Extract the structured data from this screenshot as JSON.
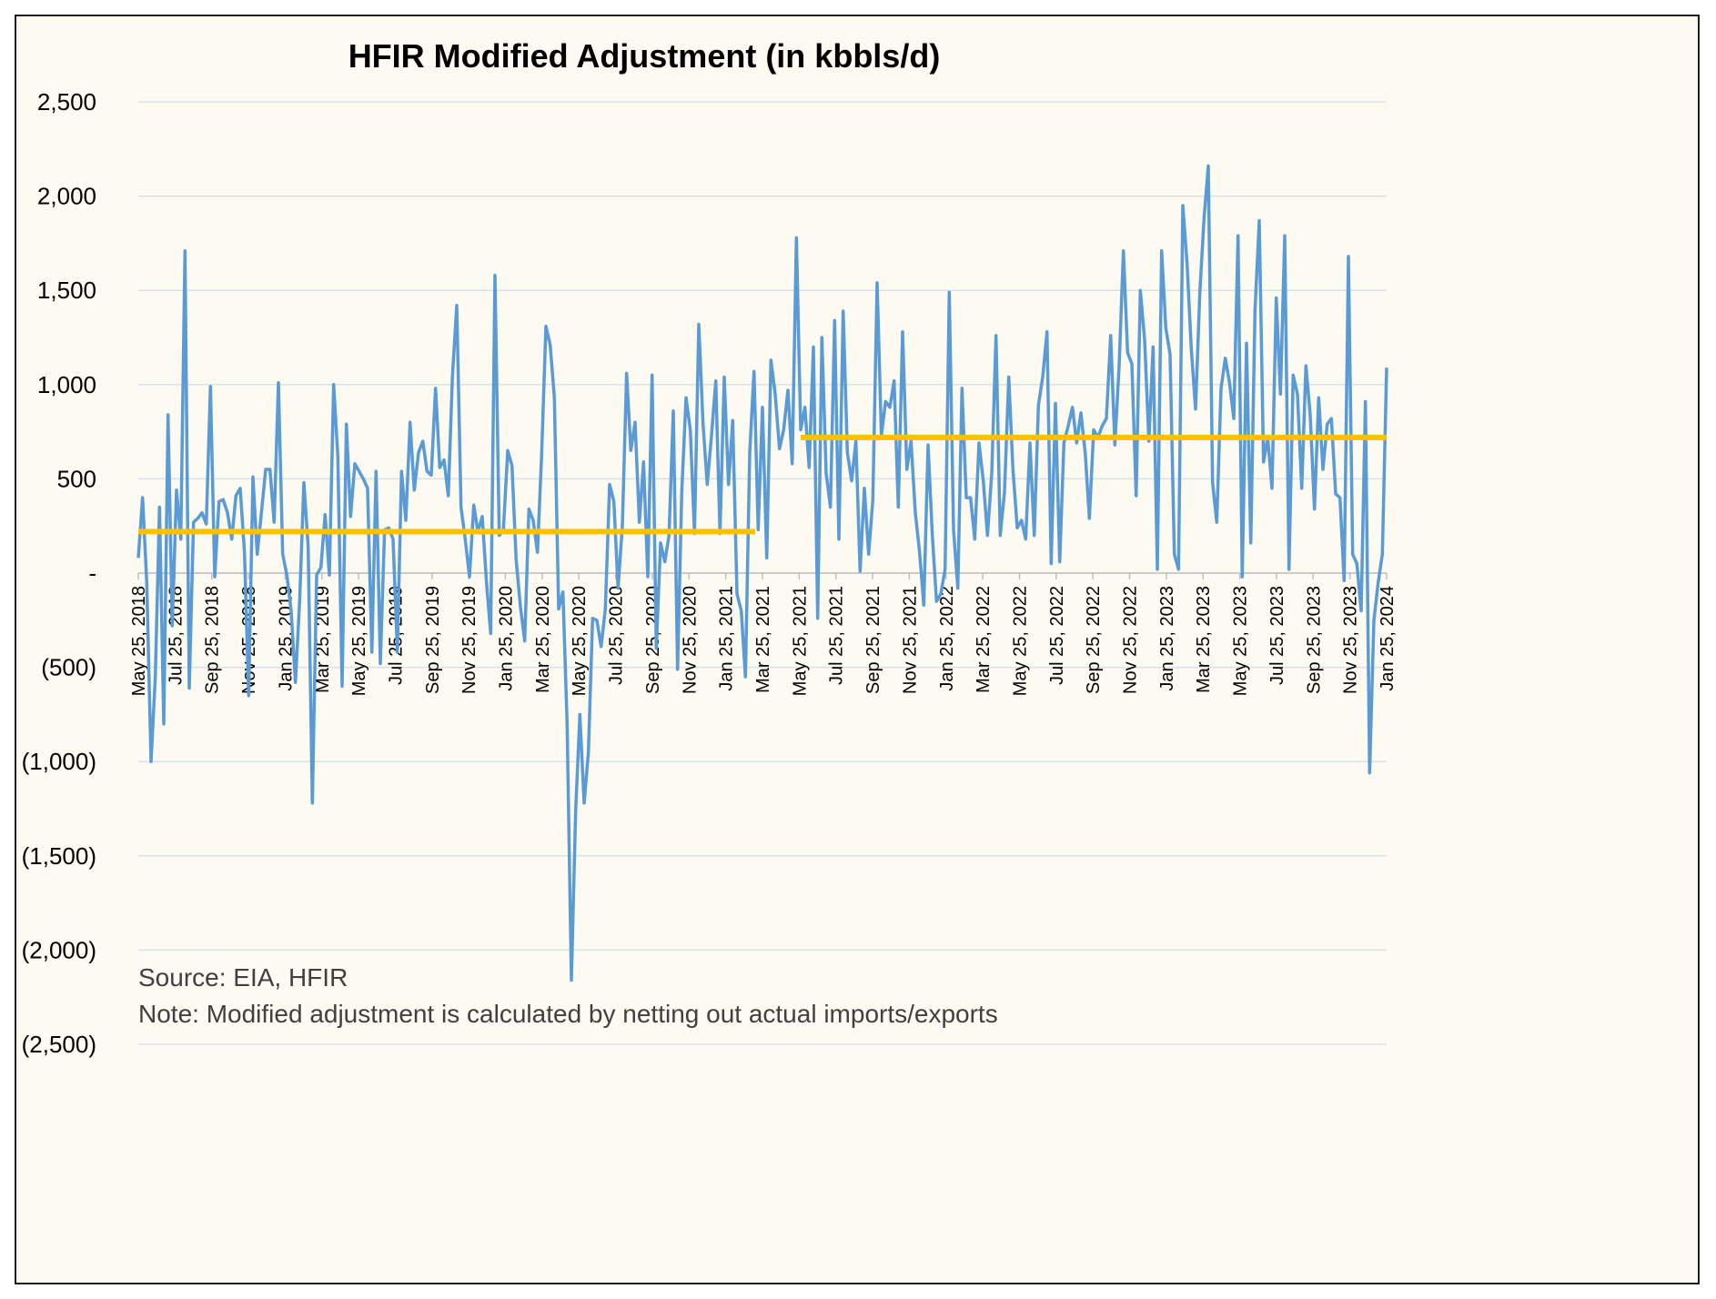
{
  "colors": {
    "background": "#fcfaf1",
    "series": "#5b9bd5",
    "average": "#ffc000",
    "gridline": "#d9e1ea",
    "frame": "#1f1f1f"
  },
  "chart_data": {
    "type": "line",
    "title": "HFIR Modified Adjustment (in kbbls/d)",
    "xlabel": "",
    "ylabel": "",
    "ylim": [
      -2500,
      2500
    ],
    "grid": "horizontal",
    "legend": "none",
    "y_ticks": [
      {
        "value": 2500,
        "label": "2,500"
      },
      {
        "value": 2000,
        "label": "2,000"
      },
      {
        "value": 1500,
        "label": "1,500"
      },
      {
        "value": 1000,
        "label": "1,000"
      },
      {
        "value": 500,
        "label": "500"
      },
      {
        "value": 0,
        "label": "-"
      },
      {
        "value": -500,
        "label": "(500)"
      },
      {
        "value": -1000,
        "label": "(1,000)"
      },
      {
        "value": -1500,
        "label": "(1,500)"
      },
      {
        "value": -2000,
        "label": "(2,000)"
      },
      {
        "value": -2500,
        "label": "(2,500)"
      }
    ],
    "x_ticks": [
      "May 25, 2018",
      "Jul 25, 2018",
      "Sep 25, 2018",
      "Nov 25, 2018",
      "Jan 25, 2019",
      "Mar 25, 2019",
      "May 25, 2019",
      "Jul 25, 2019",
      "Sep 25, 2019",
      "Nov 25, 2019",
      "Jan 25, 2020",
      "Mar 25, 2020",
      "May 25, 2020",
      "Jul 25, 2020",
      "Sep 25, 2020",
      "Nov 25, 2020",
      "Jan 25, 2021",
      "Mar 25, 2021",
      "May 25, 2021",
      "Jul 25, 2021",
      "Sep 25, 2021",
      "Nov 25, 2021",
      "Jan 25, 2022",
      "Mar 25, 2022",
      "May 25, 2022",
      "Jul 25, 2022",
      "Sep 25, 2022",
      "Nov 25, 2022",
      "Jan 25, 2023",
      "Mar 25, 2023",
      "May 25, 2023",
      "Jul 25, 2023",
      "Sep 25, 2023",
      "Nov 25, 2023",
      "Jan 25, 2024"
    ],
    "series": [
      {
        "values": [
          80,
          400,
          -50,
          -1000,
          -550,
          350,
          -800,
          840,
          -280,
          440,
          180,
          1710,
          -610,
          270,
          290,
          320,
          260,
          990,
          -20,
          380,
          390,
          320,
          180,
          410,
          450,
          110,
          -650,
          510,
          100,
          320,
          550,
          550,
          270,
          1010,
          100,
          -10,
          -200,
          -580,
          -150,
          480,
          140,
          -1220,
          -10,
          30,
          310,
          -10,
          1000,
          620,
          -600,
          790,
          300,
          580,
          540,
          500,
          450,
          -420,
          540,
          -480,
          230,
          240,
          180,
          -420,
          540,
          280,
          800,
          440,
          640,
          700,
          540,
          520,
          980,
          560,
          600,
          410,
          1050,
          1420,
          350,
          180,
          -20,
          360,
          220,
          300,
          -50,
          -320,
          1580,
          200,
          230,
          650,
          570,
          70,
          -180,
          -360,
          340,
          280,
          110,
          630,
          1310,
          1210,
          930,
          -190,
          -100,
          -800,
          -2160,
          -1260,
          -750,
          -1220,
          -950,
          -240,
          -250,
          -390,
          -190,
          470,
          380,
          -80,
          250,
          1060,
          650,
          800,
          270,
          590,
          -20,
          1050,
          -400,
          160,
          60,
          200,
          860,
          -510,
          430,
          930,
          760,
          210,
          1320,
          790,
          470,
          730,
          1020,
          210,
          1040,
          470,
          810,
          -110,
          -200,
          -550,
          640,
          1070,
          230,
          880,
          80,
          1130,
          950,
          660,
          760,
          970,
          580,
          1780,
          760,
          880,
          560,
          1200,
          -240,
          1250,
          530,
          350,
          1340,
          180,
          1390,
          640,
          490,
          700,
          10,
          450,
          100,
          390,
          1540,
          730,
          910,
          880,
          1020,
          350,
          1280,
          550,
          700,
          320,
          110,
          -170,
          680,
          200,
          -150,
          -110,
          20,
          1490,
          230,
          -80,
          980,
          400,
          400,
          180,
          690,
          490,
          200,
          530,
          1260,
          200,
          430,
          1040,
          550,
          240,
          280,
          180,
          690,
          200,
          890,
          1040,
          1280,
          50,
          900,
          60,
          690,
          780,
          880,
          690,
          850,
          640,
          290,
          760,
          720,
          780,
          820,
          1260,
          680,
          1100,
          1710,
          1170,
          1110,
          410,
          1500,
          1240,
          700,
          1200,
          20,
          1710,
          1300,
          1160,
          100,
          20,
          1950,
          1640,
          1190,
          870,
          1490,
          1880,
          2160,
          480,
          270,
          980,
          1140,
          1010,
          820,
          1790,
          -20,
          1220,
          160,
          1390,
          1870,
          590,
          720,
          450,
          1460,
          950,
          1790,
          20,
          1050,
          950,
          450,
          1100,
          840,
          340,
          930,
          550,
          790,
          820,
          420,
          400,
          -40,
          1680,
          100,
          50,
          -200,
          910,
          -1060,
          -250,
          -50,
          100,
          1090
        ]
      },
      {
        "values": [
          220,
          220
        ]
      },
      {
        "values": [
          720,
          720
        ]
      }
    ],
    "annotations": [
      "Source: EIA, HFIR",
      "Note: Modified adjustment is calculated by netting out actual imports/exports"
    ]
  }
}
